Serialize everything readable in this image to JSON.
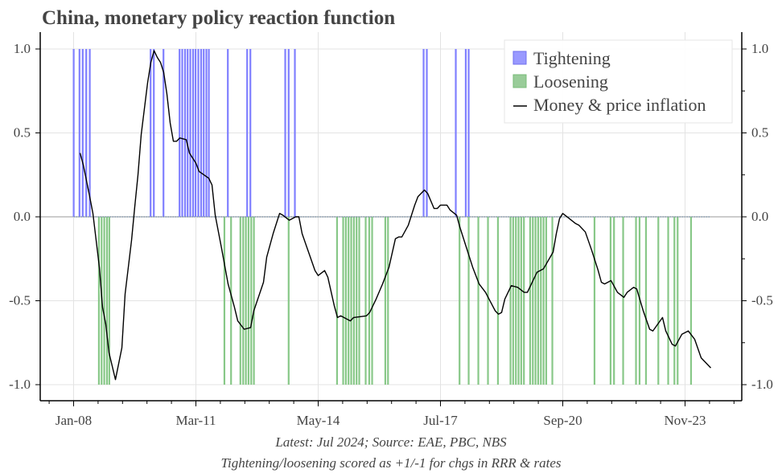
{
  "chart_data": {
    "type": "bar+line",
    "title": "China, monetary policy reaction function",
    "notes": [
      "Latest: Jul 2024; Source: EAE, PBC, NBS",
      "Tightening/loosening scored as +1/-1 for chgs in RRR & rates"
    ],
    "ylim": [
      -1.1,
      1.1
    ],
    "yticks": [
      "1.0",
      "0.5",
      "0.0",
      "-0.5",
      "-1.0"
    ],
    "ytick_values": [
      1.0,
      0.5,
      0.0,
      -0.5,
      -1.0
    ],
    "xticks": [
      {
        "label": "Jan-08",
        "date": "2008-01"
      },
      {
        "label": "Mar-11",
        "date": "2011-03"
      },
      {
        "label": "May-14",
        "date": "2014-05"
      },
      {
        "label": "Jul-17",
        "date": "2017-07"
      },
      {
        "label": "Sep-20",
        "date": "2020-09"
      },
      {
        "label": "Nov-23",
        "date": "2023-11"
      }
    ],
    "grid": true,
    "legend_position": "top-right",
    "colors": {
      "tightening": "#8080ff",
      "loosening": "#88c888",
      "line": "#000000"
    },
    "legend": [
      "Tightening",
      "Loosening",
      "Money & price inflation"
    ],
    "tightening": [
      "2008-01-01",
      "2008-02-25",
      "2008-03-25",
      "2008-04-28",
      "2008-06-01",
      "2009-12-28",
      "2010-01-28",
      "2010-04-28",
      "2010-09-28",
      "2010-10-23",
      "2010-11-19",
      "2010-12-13",
      "2011-01-08",
      "2011-02-04",
      "2011-02-27",
      "2011-03-23",
      "2011-04-19",
      "2011-05-13",
      "2011-06-08",
      "2011-07-01",
      "2011-12-28",
      "2012-06-28",
      "2012-07-28",
      "2013-06-23",
      "2013-07-25",
      "2013-09-23",
      "2017-01-23",
      "2017-02-23",
      "2017-11-23",
      "2018-02-26",
      "2018-03-23"
    ],
    "loosening": [
      "2008-08-26",
      "2008-09-21",
      "2008-10-16",
      "2008-11-11",
      "2008-12-03",
      "2011-11-26",
      "2012-01-28",
      "2012-04-25",
      "2012-05-21",
      "2012-06-16",
      "2012-07-11",
      "2012-08-06",
      "2012-09-01",
      "2013-07-25",
      "2014-10-26",
      "2014-12-23",
      "2015-01-18",
      "2015-02-13",
      "2015-03-08",
      "2015-04-03",
      "2015-04-28",
      "2015-05-23",
      "2015-07-23",
      "2015-08-26",
      "2015-09-23",
      "2016-01-26",
      "2016-02-21",
      "2017-12-28",
      "2018-03-23",
      "2018-06-23",
      "2018-09-23",
      "2018-12-26",
      "2019-04-23",
      "2019-05-18",
      "2019-06-13",
      "2019-07-08",
      "2019-08-03",
      "2019-08-28",
      "2019-10-26",
      "2019-11-21",
      "2019-12-16",
      "2020-01-11",
      "2020-02-06",
      "2020-03-01",
      "2020-03-26",
      "2020-05-23",
      "2021-06-26",
      "2021-11-26",
      "2021-12-28",
      "2022-03-23",
      "2022-07-23",
      "2022-08-26",
      "2022-10-26",
      "2023-02-21",
      "2023-05-23",
      "2023-07-21",
      "2023-08-21",
      "2023-12-26"
    ],
    "line": [
      [
        "2008-03",
        0.38
      ],
      [
        "2008-04",
        0.31
      ],
      [
        "2008-06",
        0.12
      ],
      [
        "2008-07",
        0.02
      ],
      [
        "2008-09",
        -0.3
      ],
      [
        "2008-10",
        -0.54
      ],
      [
        "2008-11",
        -0.64
      ],
      [
        "2008-12",
        -0.81
      ],
      [
        "2009-02",
        -0.97
      ],
      [
        "2009-04",
        -0.78
      ],
      [
        "2009-05",
        -0.46
      ],
      [
        "2009-07",
        -0.14
      ],
      [
        "2009-08",
        0.06
      ],
      [
        "2009-09",
        0.25
      ],
      [
        "2009-10",
        0.49
      ],
      [
        "2009-12",
        0.8
      ],
      [
        "2010-01",
        0.92
      ],
      [
        "2010-02",
        0.99
      ],
      [
        "2010-03",
        0.95
      ],
      [
        "2010-04",
        0.92
      ],
      [
        "2010-05",
        0.86
      ],
      [
        "2010-06",
        0.73
      ],
      [
        "2010-07",
        0.56
      ],
      [
        "2010-08",
        0.45
      ],
      [
        "2010-09",
        0.45
      ],
      [
        "2010-10",
        0.47
      ],
      [
        "2010-12",
        0.46
      ],
      [
        "2011-01",
        0.38
      ],
      [
        "2011-03",
        0.32
      ],
      [
        "2011-04",
        0.27
      ],
      [
        "2011-07",
        0.23
      ],
      [
        "2011-08",
        0.19
      ],
      [
        "2011-09",
        0.01
      ],
      [
        "2011-11",
        -0.19
      ],
      [
        "2012-01",
        -0.4
      ],
      [
        "2012-03",
        -0.54
      ],
      [
        "2012-04",
        -0.62
      ],
      [
        "2012-06",
        -0.67
      ],
      [
        "2012-08",
        -0.66
      ],
      [
        "2012-09",
        -0.56
      ],
      [
        "2012-12",
        -0.39
      ],
      [
        "2013-01",
        -0.24
      ],
      [
        "2013-03",
        -0.1
      ],
      [
        "2013-05",
        0.02
      ],
      [
        "2013-06",
        0.01
      ],
      [
        "2013-08",
        -0.02
      ],
      [
        "2013-10",
        0.0
      ],
      [
        "2013-11",
        0.0
      ],
      [
        "2013-12",
        -0.1
      ],
      [
        "2014-02",
        -0.21
      ],
      [
        "2014-04",
        -0.32
      ],
      [
        "2014-05",
        -0.35
      ],
      [
        "2014-07",
        -0.32
      ],
      [
        "2014-08",
        -0.36
      ],
      [
        "2014-10",
        -0.53
      ],
      [
        "2014-11",
        -0.6
      ],
      [
        "2014-12",
        -0.59
      ],
      [
        "2015-02",
        -0.61
      ],
      [
        "2015-03",
        -0.62
      ],
      [
        "2015-04",
        -0.6
      ],
      [
        "2015-08",
        -0.59
      ],
      [
        "2015-09",
        -0.57
      ],
      [
        "2015-11",
        -0.49
      ],
      [
        "2016-01",
        -0.4
      ],
      [
        "2016-03",
        -0.3
      ],
      [
        "2016-05",
        -0.13
      ],
      [
        "2016-06",
        -0.12
      ],
      [
        "2016-07",
        -0.12
      ],
      [
        "2016-09",
        -0.05
      ],
      [
        "2016-11",
        0.07
      ],
      [
        "2016-12",
        0.12
      ],
      [
        "2017-02",
        0.16
      ],
      [
        "2017-03",
        0.14
      ],
      [
        "2017-05",
        0.05
      ],
      [
        "2017-06",
        0.05
      ],
      [
        "2017-07",
        0.07
      ],
      [
        "2017-09",
        0.07
      ],
      [
        "2017-10",
        0.04
      ],
      [
        "2017-12",
        0.01
      ],
      [
        "2018-01",
        -0.06
      ],
      [
        "2018-03",
        -0.18
      ],
      [
        "2018-05",
        -0.3
      ],
      [
        "2018-07",
        -0.4
      ],
      [
        "2018-09",
        -0.45
      ],
      [
        "2018-12",
        -0.56
      ],
      [
        "2019-01",
        -0.58
      ],
      [
        "2019-02",
        -0.57
      ],
      [
        "2019-03",
        -0.49
      ],
      [
        "2019-05",
        -0.41
      ],
      [
        "2019-07",
        -0.42
      ],
      [
        "2019-09",
        -0.45
      ],
      [
        "2019-10",
        -0.45
      ],
      [
        "2019-12",
        -0.37
      ],
      [
        "2020-01",
        -0.33
      ],
      [
        "2020-03",
        -0.31
      ],
      [
        "2020-06",
        -0.21
      ],
      [
        "2020-07",
        -0.1
      ],
      [
        "2020-08",
        -0.01
      ],
      [
        "2020-09",
        0.02
      ],
      [
        "2020-11",
        -0.01
      ],
      [
        "2021-01",
        -0.04
      ],
      [
        "2021-02",
        -0.05
      ],
      [
        "2021-04",
        -0.09
      ],
      [
        "2021-06",
        -0.2
      ],
      [
        "2021-08",
        -0.32
      ],
      [
        "2021-09",
        -0.39
      ],
      [
        "2021-10",
        -0.4
      ],
      [
        "2021-12",
        -0.38
      ],
      [
        "2022-02",
        -0.45
      ],
      [
        "2022-04",
        -0.48
      ],
      [
        "2022-05",
        -0.45
      ],
      [
        "2022-07",
        -0.42
      ],
      [
        "2022-08",
        -0.43
      ],
      [
        "2022-10",
        -0.56
      ],
      [
        "2022-12",
        -0.67
      ],
      [
        "2023-01",
        -0.68
      ],
      [
        "2023-04",
        -0.6
      ],
      [
        "2023-05",
        -0.68
      ],
      [
        "2023-07",
        -0.76
      ],
      [
        "2023-08",
        -0.77
      ],
      [
        "2023-10",
        -0.7
      ],
      [
        "2023-12",
        -0.68
      ],
      [
        "2024-02",
        -0.73
      ],
      [
        "2024-04",
        -0.84
      ],
      [
        "2024-07",
        -0.9
      ]
    ]
  }
}
